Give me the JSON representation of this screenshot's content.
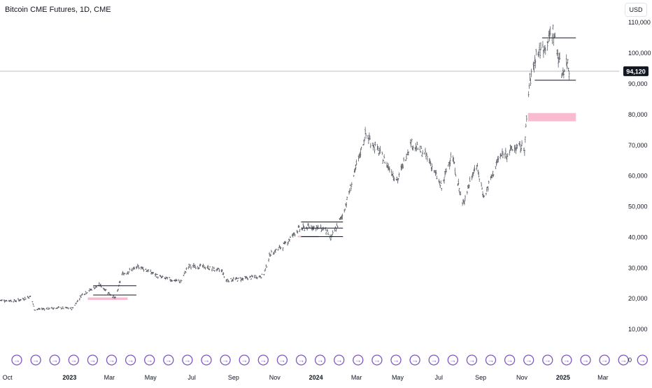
{
  "header": {
    "title": "Bitcoin CME Futures, 1D, CME",
    "currency_button": "USD"
  },
  "price_marker": {
    "label": "94,120",
    "value": 94120
  },
  "chart_data": {
    "type": "ohlc",
    "symbol": "Bitcoin CME Futures",
    "interval": "1D",
    "exchange": "CME",
    "currency": "USD",
    "ylim": [
      0,
      112000
    ],
    "y_ticks": [
      0,
      10000,
      20000,
      30000,
      40000,
      50000,
      60000,
      70000,
      80000,
      90000,
      100000,
      110000
    ],
    "y_tick_labels": [
      "0",
      "10,000",
      "20,000",
      "30,000",
      "40,000",
      "50,000",
      "60,000",
      "70,000",
      "80,000",
      "90,000",
      "100,000",
      "110,000"
    ],
    "x_range": [
      "2022-09-20",
      "2025-03-25"
    ],
    "x_ticks": [
      {
        "date": "2022-10-01",
        "label": "Oct",
        "bold": false
      },
      {
        "date": "2023-01-01",
        "label": "2023",
        "bold": true
      },
      {
        "date": "2023-03-01",
        "label": "Mar",
        "bold": false
      },
      {
        "date": "2023-05-01",
        "label": "May",
        "bold": false
      },
      {
        "date": "2023-07-01",
        "label": "Jul",
        "bold": false
      },
      {
        "date": "2023-09-01",
        "label": "Sep",
        "bold": false
      },
      {
        "date": "2023-11-01",
        "label": "Nov",
        "bold": false
      },
      {
        "date": "2024-01-01",
        "label": "2024",
        "bold": true
      },
      {
        "date": "2024-03-01",
        "label": "Mar",
        "bold": false
      },
      {
        "date": "2024-05-01",
        "label": "May",
        "bold": false
      },
      {
        "date": "2024-07-01",
        "label": "Jul",
        "bold": false
      },
      {
        "date": "2024-09-01",
        "label": "Sep",
        "bold": false
      },
      {
        "date": "2024-11-01",
        "label": "Nov",
        "bold": false
      },
      {
        "date": "2025-01-01",
        "label": "2025",
        "bold": true
      },
      {
        "date": "2025-03-01",
        "label": "Mar",
        "bold": false
      }
    ],
    "price_path": [
      [
        "2022-09-20",
        19500
      ],
      [
        "2022-10-15",
        19300
      ],
      [
        "2022-11-05",
        20800
      ],
      [
        "2022-11-10",
        16500
      ],
      [
        "2022-12-15",
        17000
      ],
      [
        "2023-01-05",
        16800
      ],
      [
        "2023-01-20",
        21500
      ],
      [
        "2023-02-15",
        24500
      ],
      [
        "2023-03-10",
        20000
      ],
      [
        "2023-03-20",
        28000
      ],
      [
        "2023-04-15",
        30500
      ],
      [
        "2023-05-15",
        27000
      ],
      [
        "2023-06-15",
        25500
      ],
      [
        "2023-06-25",
        30500
      ],
      [
        "2023-07-15",
        30500
      ],
      [
        "2023-08-15",
        29000
      ],
      [
        "2023-08-20",
        26000
      ],
      [
        "2023-09-15",
        26500
      ],
      [
        "2023-10-15",
        27500
      ],
      [
        "2023-10-25",
        34500
      ],
      [
        "2023-11-15",
        37500
      ],
      [
        "2023-12-05",
        42500
      ],
      [
        "2023-12-25",
        43500
      ],
      [
        "2024-01-15",
        42500
      ],
      [
        "2024-01-23",
        39500
      ],
      [
        "2024-02-10",
        47500
      ],
      [
        "2024-03-01",
        63000
      ],
      [
        "2024-03-14",
        73500
      ],
      [
        "2024-04-01",
        68500
      ],
      [
        "2024-05-01",
        58500
      ],
      [
        "2024-05-20",
        71000
      ],
      [
        "2024-06-15",
        66000
      ],
      [
        "2024-07-05",
        56000
      ],
      [
        "2024-07-20",
        67500
      ],
      [
        "2024-08-05",
        50500
      ],
      [
        "2024-08-25",
        64000
      ],
      [
        "2024-09-06",
        53000
      ],
      [
        "2024-09-28",
        66000
      ],
      [
        "2024-10-20",
        69000
      ],
      [
        "2024-11-05",
        69500
      ],
      [
        "2024-11-12",
        89500
      ],
      [
        "2024-11-22",
        100000
      ],
      [
        "2024-12-05",
        102000
      ],
      [
        "2024-12-17",
        107500
      ],
      [
        "2024-12-30",
        93500
      ],
      [
        "2025-01-08",
        97000
      ],
      [
        "2025-01-10",
        94120
      ]
    ],
    "markers": {
      "count": 36,
      "symbol": "→",
      "color": "#7e57c2"
    }
  }
}
